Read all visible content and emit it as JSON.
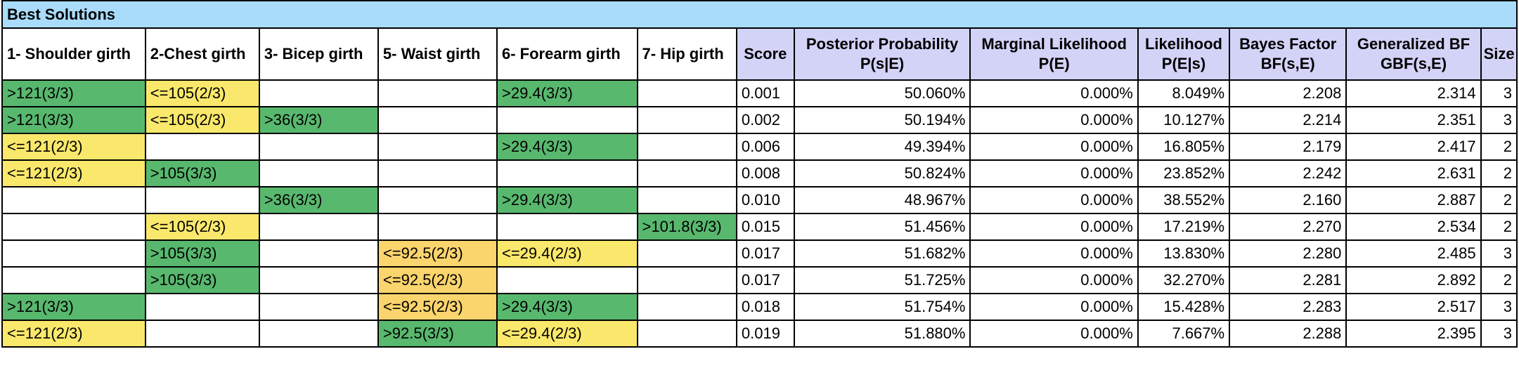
{
  "title": "Best Solutions",
  "feature_headers": [
    "1- Shoulder girth",
    "2-Chest girth",
    "3- Bicep girth",
    "5- Waist girth",
    "6- Forearm girth",
    "7- Hip girth"
  ],
  "metric_headers": [
    {
      "line1": "Score",
      "line2": ""
    },
    {
      "line1": "Posterior Probability",
      "line2": "P(s|E)"
    },
    {
      "line1": "Marginal Likelihood",
      "line2": "P(E)"
    },
    {
      "line1": "Likelihood",
      "line2": "P(E|s)"
    },
    {
      "line1": "Bayes Factor",
      "line2": "BF(s,E)"
    },
    {
      "line1": "Generalized BF",
      "line2": "GBF(s,E)"
    },
    {
      "line1": "Size",
      "line2": ""
    }
  ],
  "colors": {
    "green": "#58b86e",
    "yellow": "#f9e86b",
    "orange": "#fad46c",
    "title_bg": "#a9dcfb",
    "metric_header_bg": "#d3d3f8"
  },
  "rows": [
    {
      "cells": [
        {
          "text": ">121(3/3)",
          "color": "green"
        },
        {
          "text": "<=105(2/3)",
          "color": "yellow"
        },
        {
          "text": "",
          "color": "white"
        },
        {
          "text": "",
          "color": "white"
        },
        {
          "text": ">29.4(3/3)",
          "color": "green"
        },
        {
          "text": "",
          "color": "white"
        }
      ],
      "score": "0.001",
      "posterior": "50.060%",
      "marginal": "0.000%",
      "likelihood": "8.049%",
      "bf": "2.208",
      "gbf": "2.314",
      "size": "3"
    },
    {
      "cells": [
        {
          "text": ">121(3/3)",
          "color": "green"
        },
        {
          "text": "<=105(2/3)",
          "color": "yellow"
        },
        {
          "text": ">36(3/3)",
          "color": "green"
        },
        {
          "text": "",
          "color": "white"
        },
        {
          "text": "",
          "color": "white"
        },
        {
          "text": "",
          "color": "white"
        }
      ],
      "score": "0.002",
      "posterior": "50.194%",
      "marginal": "0.000%",
      "likelihood": "10.127%",
      "bf": "2.214",
      "gbf": "2.351",
      "size": "3"
    },
    {
      "cells": [
        {
          "text": "<=121(2/3)",
          "color": "yellow"
        },
        {
          "text": "",
          "color": "white"
        },
        {
          "text": "",
          "color": "white"
        },
        {
          "text": "",
          "color": "white"
        },
        {
          "text": ">29.4(3/3)",
          "color": "green"
        },
        {
          "text": "",
          "color": "white"
        }
      ],
      "score": "0.006",
      "posterior": "49.394%",
      "marginal": "0.000%",
      "likelihood": "16.805%",
      "bf": "2.179",
      "gbf": "2.417",
      "size": "2"
    },
    {
      "cells": [
        {
          "text": "<=121(2/3)",
          "color": "yellow"
        },
        {
          "text": ">105(3/3)",
          "color": "green"
        },
        {
          "text": "",
          "color": "white"
        },
        {
          "text": "",
          "color": "white"
        },
        {
          "text": "",
          "color": "white"
        },
        {
          "text": "",
          "color": "white"
        }
      ],
      "score": "0.008",
      "posterior": "50.824%",
      "marginal": "0.000%",
      "likelihood": "23.852%",
      "bf": "2.242",
      "gbf": "2.631",
      "size": "2"
    },
    {
      "cells": [
        {
          "text": "",
          "color": "white"
        },
        {
          "text": "",
          "color": "white"
        },
        {
          "text": ">36(3/3)",
          "color": "green"
        },
        {
          "text": "",
          "color": "white"
        },
        {
          "text": ">29.4(3/3)",
          "color": "green"
        },
        {
          "text": "",
          "color": "white"
        }
      ],
      "score": "0.010",
      "posterior": "48.967%",
      "marginal": "0.000%",
      "likelihood": "38.552%",
      "bf": "2.160",
      "gbf": "2.887",
      "size": "2"
    },
    {
      "cells": [
        {
          "text": "",
          "color": "white"
        },
        {
          "text": "<=105(2/3)",
          "color": "yellow"
        },
        {
          "text": "",
          "color": "white"
        },
        {
          "text": "",
          "color": "white"
        },
        {
          "text": "",
          "color": "white"
        },
        {
          "text": ">101.8(3/3)",
          "color": "green"
        }
      ],
      "score": "0.015",
      "posterior": "51.456%",
      "marginal": "0.000%",
      "likelihood": "17.219%",
      "bf": "2.270",
      "gbf": "2.534",
      "size": "2"
    },
    {
      "cells": [
        {
          "text": "",
          "color": "white"
        },
        {
          "text": ">105(3/3)",
          "color": "green"
        },
        {
          "text": "",
          "color": "white"
        },
        {
          "text": "<=92.5(2/3)",
          "color": "orange"
        },
        {
          "text": "<=29.4(2/3)",
          "color": "yellow"
        },
        {
          "text": "",
          "color": "white"
        }
      ],
      "score": "0.017",
      "posterior": "51.682%",
      "marginal": "0.000%",
      "likelihood": "13.830%",
      "bf": "2.280",
      "gbf": "2.485",
      "size": "3"
    },
    {
      "cells": [
        {
          "text": "",
          "color": "white"
        },
        {
          "text": ">105(3/3)",
          "color": "green"
        },
        {
          "text": "",
          "color": "white"
        },
        {
          "text": "<=92.5(2/3)",
          "color": "orange"
        },
        {
          "text": "",
          "color": "white"
        },
        {
          "text": "",
          "color": "white"
        }
      ],
      "score": "0.017",
      "posterior": "51.725%",
      "marginal": "0.000%",
      "likelihood": "32.270%",
      "bf": "2.281",
      "gbf": "2.892",
      "size": "2"
    },
    {
      "cells": [
        {
          "text": ">121(3/3)",
          "color": "green"
        },
        {
          "text": "",
          "color": "white"
        },
        {
          "text": "",
          "color": "white"
        },
        {
          "text": "<=92.5(2/3)",
          "color": "orange"
        },
        {
          "text": ">29.4(3/3)",
          "color": "green"
        },
        {
          "text": "",
          "color": "white"
        }
      ],
      "score": "0.018",
      "posterior": "51.754%",
      "marginal": "0.000%",
      "likelihood": "15.428%",
      "bf": "2.283",
      "gbf": "2.517",
      "size": "3"
    },
    {
      "cells": [
        {
          "text": "<=121(2/3)",
          "color": "yellow"
        },
        {
          "text": "",
          "color": "white"
        },
        {
          "text": "",
          "color": "white"
        },
        {
          "text": ">92.5(3/3)",
          "color": "green"
        },
        {
          "text": "<=29.4(2/3)",
          "color": "yellow"
        },
        {
          "text": "",
          "color": "white"
        }
      ],
      "score": "0.019",
      "posterior": "51.880%",
      "marginal": "0.000%",
      "likelihood": "7.667%",
      "bf": "2.288",
      "gbf": "2.395",
      "size": "3"
    }
  ]
}
